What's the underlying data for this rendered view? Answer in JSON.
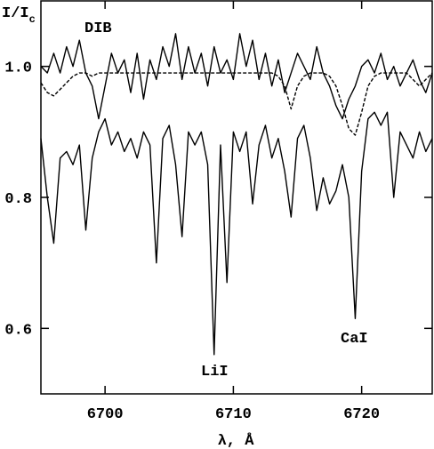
{
  "chart_data": {
    "type": "line",
    "ylabel": "I/I",
    "ylabel_sub": "c",
    "xlabel": "λ, Å",
    "annotations": [
      "DIB",
      "LiI",
      "CaI"
    ],
    "x": [
      6695,
      6695.5,
      6696,
      6696.5,
      6697,
      6697.5,
      6698,
      6698.5,
      6699,
      6699.5,
      6700,
      6700.5,
      6701,
      6701.5,
      6702,
      6702.5,
      6703,
      6703.5,
      6704,
      6704.5,
      6705,
      6705.5,
      6706,
      6706.5,
      6707,
      6707.5,
      6708,
      6708.5,
      6709,
      6709.5,
      6710,
      6710.5,
      6711,
      6711.5,
      6712,
      6712.5,
      6713,
      6713.5,
      6714,
      6714.5,
      6715,
      6715.5,
      6716,
      6716.5,
      6717,
      6717.5,
      6718,
      6718.5,
      6719,
      6719.5,
      6720,
      6720.5,
      6721,
      6721.5,
      6722,
      6722.5,
      6723,
      6723.5,
      6724,
      6724.5,
      6725,
      6725.5
    ],
    "series": [
      {
        "color": "#000000",
        "style": "solid",
        "values": [
          0.89,
          0.8,
          0.73,
          0.86,
          0.87,
          0.85,
          0.88,
          0.75,
          0.86,
          0.9,
          0.92,
          0.88,
          0.9,
          0.87,
          0.89,
          0.86,
          0.9,
          0.88,
          0.7,
          0.89,
          0.91,
          0.85,
          0.74,
          0.9,
          0.88,
          0.9,
          0.85,
          0.56,
          0.88,
          0.67,
          0.9,
          0.87,
          0.9,
          0.79,
          0.88,
          0.91,
          0.86,
          0.89,
          0.84,
          0.77,
          0.89,
          0.91,
          0.86,
          0.78,
          0.83,
          0.79,
          0.81,
          0.85,
          0.8,
          0.615,
          0.84,
          0.92,
          0.93,
          0.91,
          0.93,
          0.8,
          0.9,
          0.88,
          0.86,
          0.9,
          0.87,
          0.89
        ]
      },
      {
        "color": "#000000",
        "style": "solid",
        "values": [
          1.0,
          0.99,
          1.02,
          0.99,
          1.03,
          1.0,
          1.04,
          0.99,
          0.97,
          0.92,
          0.97,
          1.02,
          0.99,
          1.01,
          0.96,
          1.02,
          0.95,
          1.01,
          0.98,
          1.03,
          1.0,
          1.05,
          0.98,
          1.03,
          0.99,
          1.02,
          0.97,
          1.03,
          0.99,
          1.01,
          0.98,
          1.05,
          1.0,
          1.04,
          0.98,
          1.02,
          0.97,
          1.01,
          0.96,
          0.99,
          1.02,
          1.0,
          0.98,
          1.03,
          0.99,
          0.97,
          0.94,
          0.92,
          0.95,
          0.97,
          1.0,
          1.01,
          0.99,
          1.02,
          0.98,
          1.0,
          0.97,
          0.99,
          1.01,
          0.98,
          0.96,
          0.99
        ]
      },
      {
        "color": "#000000",
        "style": "dashed",
        "values": [
          0.975,
          0.96,
          0.955,
          0.965,
          0.975,
          0.985,
          0.99,
          0.99,
          0.985,
          0.99,
          0.99,
          0.99,
          0.99,
          0.99,
          0.99,
          0.99,
          0.99,
          0.99,
          0.99,
          0.99,
          0.99,
          0.99,
          0.99,
          0.99,
          0.99,
          0.99,
          0.99,
          0.99,
          0.99,
          0.99,
          0.99,
          0.99,
          0.99,
          0.99,
          0.99,
          0.99,
          0.99,
          0.985,
          0.97,
          0.935,
          0.97,
          0.985,
          0.99,
          0.99,
          0.99,
          0.985,
          0.97,
          0.94,
          0.905,
          0.895,
          0.93,
          0.97,
          0.985,
          0.99,
          0.99,
          0.99,
          0.99,
          0.99,
          0.98,
          0.97,
          0.98,
          0.99
        ]
      }
    ],
    "xlim": [
      6695,
      6725.5
    ],
    "ylim": [
      0.5,
      1.1
    ],
    "xticks": [
      6700,
      6710,
      6720
    ],
    "yticks": [
      0.6,
      0.8,
      {
        "value": 1.0,
        "label": "1.0"
      }
    ],
    "grid": false
  }
}
